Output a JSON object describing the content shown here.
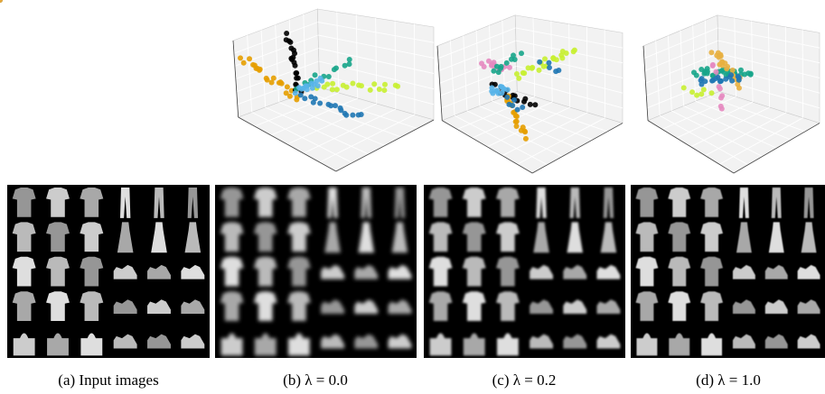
{
  "captions": [
    "(a) Input images",
    "(b) λ = 0.0",
    "(c) λ = 0.2",
    "(d) λ = 1.0"
  ]
}
